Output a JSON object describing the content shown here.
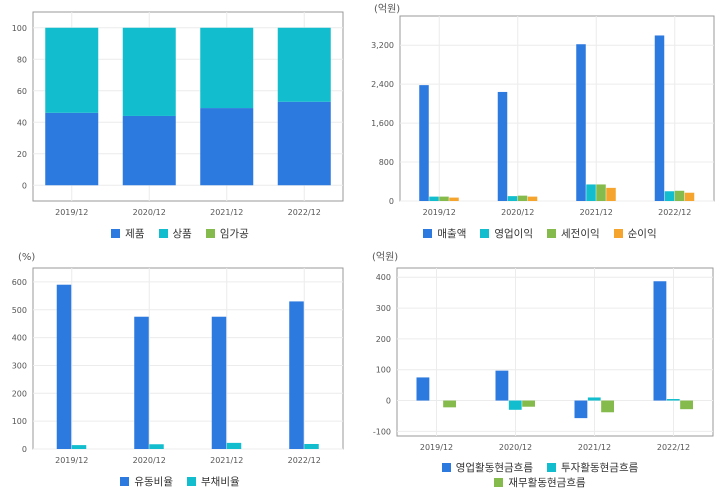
{
  "colors": {
    "blue": "#2c79df",
    "teal": "#12bdcd",
    "green": "#84bb4c",
    "orange": "#f5a42d",
    "grid": "#ececec",
    "axis": "#999999"
  },
  "chart_data": [
    {
      "type": "bar",
      "stacked": true,
      "unit": "",
      "categories": [
        "2019/12",
        "2020/12",
        "2021/12",
        "2022/12"
      ],
      "series": [
        {
          "name": "제품",
          "color": "#2c79df",
          "values": [
            46,
            44,
            49,
            53
          ]
        },
        {
          "name": "상품",
          "color": "#12bdcd",
          "values": [
            54,
            56,
            51,
            47
          ]
        },
        {
          "name": "임가공",
          "color": "#84bb4c",
          "values": [
            0,
            0,
            0,
            0
          ]
        }
      ],
      "yticks": [
        0,
        20,
        40,
        60,
        80,
        100
      ],
      "ylim": [
        -10,
        110
      ],
      "grid": true,
      "legend_position": "bottom"
    },
    {
      "type": "bar",
      "stacked": false,
      "unit": "(억원)",
      "categories": [
        "2019/12",
        "2020/12",
        "2021/12",
        "2022/12"
      ],
      "series": [
        {
          "name": "매출액",
          "color": "#2c79df",
          "values": [
            2380,
            2240,
            3220,
            3400
          ]
        },
        {
          "name": "영업이익",
          "color": "#12bdcd",
          "values": [
            90,
            100,
            340,
            200
          ]
        },
        {
          "name": "세전이익",
          "color": "#84bb4c",
          "values": [
            90,
            110,
            340,
            210
          ]
        },
        {
          "name": "순이익",
          "color": "#f5a42d",
          "values": [
            70,
            90,
            270,
            170
          ]
        }
      ],
      "yticks": [
        0,
        800,
        1600,
        2400,
        3200
      ],
      "ytick_labels": [
        "0",
        "800",
        "1,600",
        "2,400",
        "3,200"
      ],
      "ylim": [
        0,
        3800
      ],
      "grid": true,
      "legend_position": "bottom"
    },
    {
      "type": "bar",
      "stacked": false,
      "unit": "(%)",
      "categories": [
        "2019/12",
        "2020/12",
        "2021/12",
        "2022/12"
      ],
      "series": [
        {
          "name": "유동비율",
          "color": "#2c79df",
          "values": [
            590,
            475,
            475,
            530
          ]
        },
        {
          "name": "부채비율",
          "color": "#12bdcd",
          "values": [
            14,
            17,
            22,
            18
          ]
        }
      ],
      "yticks": [
        0,
        100,
        200,
        300,
        400,
        500,
        600
      ],
      "ylim": [
        0,
        650
      ],
      "grid": true,
      "legend_position": "bottom"
    },
    {
      "type": "bar",
      "stacked": false,
      "unit": "(억원)",
      "categories": [
        "2019/12",
        "2020/12",
        "2021/12",
        "2022/12"
      ],
      "series": [
        {
          "name": "영업활동현금흐름",
          "color": "#2c79df",
          "values": [
            75,
            97,
            -57,
            387
          ]
        },
        {
          "name": "투자활동현금흐름",
          "color": "#12bdcd",
          "values": [
            0,
            -30,
            10,
            5
          ]
        },
        {
          "name": "재무활동현금흐름",
          "color": "#84bb4c",
          "values": [
            -22,
            -20,
            -38,
            -28
          ]
        }
      ],
      "yticks": [
        -100,
        0,
        100,
        200,
        300,
        400
      ],
      "ylim": [
        -115,
        430
      ],
      "grid": true,
      "legend_position": "bottom"
    }
  ]
}
